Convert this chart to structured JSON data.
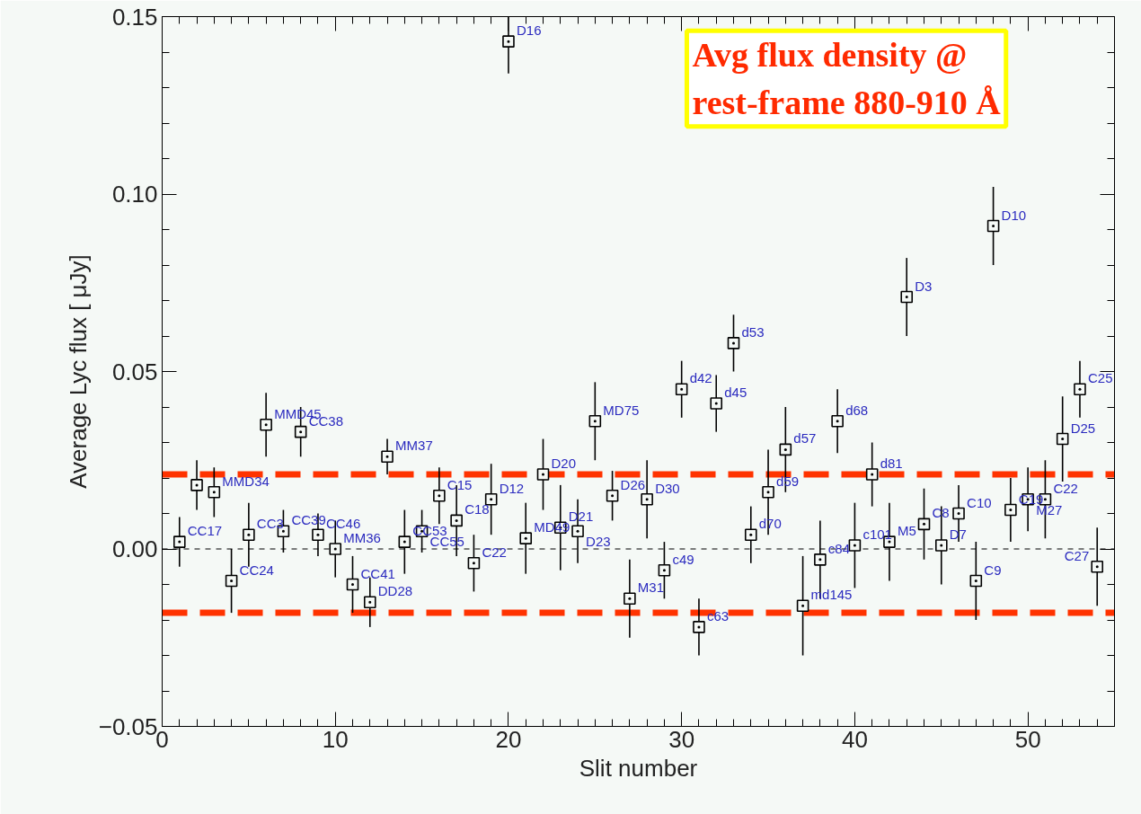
{
  "chart_data": {
    "type": "scatter",
    "xlabel": "Slit number",
    "ylabel": "Average Lyc flux [ μJy]",
    "x": [
      1,
      2,
      3,
      4,
      5,
      6,
      7,
      8,
      9,
      10,
      11,
      12,
      13,
      14,
      15,
      16,
      17,
      18,
      19,
      20,
      21,
      22,
      23,
      24,
      25,
      26,
      27,
      28,
      29,
      30,
      31,
      32,
      33,
      34,
      35,
      36,
      37,
      38,
      39,
      40,
      41,
      42,
      43,
      44,
      45,
      46,
      47,
      48,
      49,
      50,
      51,
      52,
      53,
      54
    ],
    "series": [
      {
        "color": "#000000",
        "values": [
          0.002,
          0.018,
          0.016,
          -0.009,
          0.004,
          0.035,
          0.005,
          0.033,
          0.004,
          0.0,
          -0.01,
          -0.015,
          0.026,
          0.002,
          0.005,
          0.015,
          0.008,
          -0.004,
          0.014,
          0.143,
          0.003,
          0.021,
          0.006,
          0.005,
          0.036,
          0.015,
          -0.014,
          0.014,
          -0.006,
          0.045,
          -0.022,
          0.041,
          0.058,
          0.004,
          0.016,
          0.028,
          -0.016,
          -0.003,
          0.036,
          0.001,
          0.021,
          0.002,
          0.071,
          0.007,
          0.001,
          0.01,
          -0.009,
          0.091,
          0.011,
          0.014,
          0.014,
          0.031,
          0.045,
          -0.005
        ],
        "errors": [
          0.007,
          0.007,
          0.007,
          0.009,
          0.009,
          0.009,
          0.006,
          0.007,
          0.006,
          0.008,
          0.008,
          0.007,
          0.005,
          0.009,
          0.006,
          0.008,
          0.01,
          0.008,
          0.01,
          0.009,
          0.01,
          0.01,
          0.012,
          0.009,
          0.011,
          0.007,
          0.011,
          0.011,
          0.008,
          0.008,
          0.008,
          0.008,
          0.008,
          0.008,
          0.012,
          0.012,
          0.014,
          0.011,
          0.009,
          0.012,
          0.009,
          0.011,
          0.011,
          0.01,
          0.011,
          0.008,
          0.011,
          0.011,
          0.009,
          0.009,
          0.011,
          0.012,
          0.008,
          0.011
        ]
      }
    ],
    "marker": "square",
    "grid": false,
    "xlim": [
      0,
      55
    ],
    "xticks": [
      0,
      10,
      20,
      30,
      40,
      50
    ],
    "ylim": [
      -0.05,
      0.15
    ],
    "yticks": [
      {
        "value": -0.05,
        "label": "−0.05"
      },
      {
        "value": 0,
        "label": "0.00"
      },
      {
        "value": 0.05,
        "label": "0.05"
      },
      {
        "value": 0.1,
        "label": "0.10"
      },
      {
        "value": 0.15,
        "label": "0.15"
      }
    ],
    "ref_lines": [
      {
        "axis": "y",
        "value": 0,
        "color": "#000000",
        "line_style": "dashed"
      },
      {
        "axis": "y",
        "value": 0.021,
        "color": "#ff3300",
        "line_style": "dashed"
      },
      {
        "axis": "y",
        "value": -0.018,
        "color": "#ff3300",
        "line_style": "dashed"
      }
    ],
    "annotations": [
      "Avg flux density @\nrest-frame 880-910 Å",
      {
        "text": "CC17",
        "x": 1,
        "y": 0.002
      },
      {
        "text": "MMD34",
        "x": 3,
        "y": 0.016
      },
      {
        "text": "CC24",
        "x": 4,
        "y": -0.009
      },
      {
        "text": "CC3",
        "x": 5,
        "y": 0.004
      },
      {
        "text": "MMD45",
        "x": 6,
        "y": 0.035
      },
      {
        "text": "CC39",
        "x": 7,
        "y": 0.005
      },
      {
        "text": "CC38",
        "x": 8,
        "y": 0.033
      },
      {
        "text": "CC46",
        "x": 9,
        "y": 0.004
      },
      {
        "text": "MM36",
        "x": 10,
        "y": 0.0
      },
      {
        "text": "CC41",
        "x": 11,
        "y": -0.01
      },
      {
        "text": "DD28",
        "x": 12,
        "y": -0.015
      },
      {
        "text": "MM37",
        "x": 13,
        "y": 0.026
      },
      {
        "text": "CC53",
        "x": 14,
        "y": 0.002
      },
      {
        "text": "CC55",
        "x": 15,
        "y": 0.005
      },
      {
        "text": "C15",
        "x": 16,
        "y": 0.015
      },
      {
        "text": "C18",
        "x": 17,
        "y": 0.008
      },
      {
        "text": "C22",
        "x": 18,
        "y": -0.004
      },
      {
        "text": "D12",
        "x": 19,
        "y": 0.014
      },
      {
        "text": "D16",
        "x": 20,
        "y": 0.143
      },
      {
        "text": "MD49",
        "x": 21,
        "y": 0.003
      },
      {
        "text": "D20",
        "x": 22,
        "y": 0.021
      },
      {
        "text": "D21",
        "x": 23,
        "y": 0.006
      },
      {
        "text": "D23",
        "x": 24,
        "y": 0.005
      },
      {
        "text": "MD75",
        "x": 25,
        "y": 0.036
      },
      {
        "text": "D26",
        "x": 26,
        "y": 0.015
      },
      {
        "text": "M31",
        "x": 27,
        "y": -0.014
      },
      {
        "text": "D30",
        "x": 28,
        "y": 0.014
      },
      {
        "text": "c49",
        "x": 29,
        "y": -0.006
      },
      {
        "text": "d42",
        "x": 30,
        "y": 0.045
      },
      {
        "text": "c63",
        "x": 31,
        "y": -0.022
      },
      {
        "text": "d45",
        "x": 32,
        "y": 0.041
      },
      {
        "text": "d53",
        "x": 33,
        "y": 0.058
      },
      {
        "text": "d70",
        "x": 34,
        "y": 0.004
      },
      {
        "text": "d59",
        "x": 35,
        "y": 0.016
      },
      {
        "text": "d57",
        "x": 36,
        "y": 0.028
      },
      {
        "text": "md145",
        "x": 37,
        "y": -0.016
      },
      {
        "text": "c84",
        "x": 38,
        "y": -0.003
      },
      {
        "text": "d68",
        "x": 39,
        "y": 0.036
      },
      {
        "text": "c101",
        "x": 40,
        "y": 0.001
      },
      {
        "text": "d81",
        "x": 41,
        "y": 0.021
      },
      {
        "text": "M5",
        "x": 42,
        "y": 0.002
      },
      {
        "text": "D3",
        "x": 43,
        "y": 0.071
      },
      {
        "text": "C8",
        "x": 44,
        "y": 0.007
      },
      {
        "text": "D7",
        "x": 45,
        "y": 0.001
      },
      {
        "text": "C10",
        "x": 46,
        "y": 0.01
      },
      {
        "text": "C9",
        "x": 47,
        "y": -0.009
      },
      {
        "text": "D10",
        "x": 48,
        "y": 0.091
      },
      {
        "text": "C19",
        "x": 49,
        "y": 0.011
      },
      {
        "text": "M27",
        "x": 50,
        "y": 0.014
      },
      {
        "text": "C22",
        "x": 51,
        "y": 0.014
      },
      {
        "text": "D25",
        "x": 52,
        "y": 0.031
      },
      {
        "text": "C25",
        "x": 53,
        "y": 0.045
      },
      {
        "text": "C27",
        "x": 54,
        "y": -0.005
      }
    ]
  }
}
